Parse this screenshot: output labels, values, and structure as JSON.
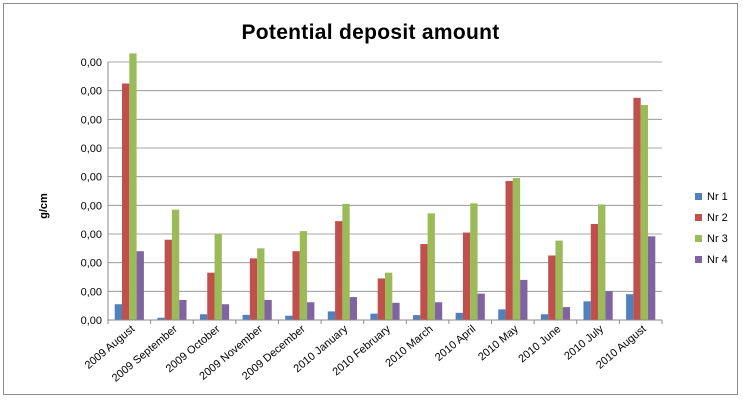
{
  "chart_data": {
    "type": "bar",
    "title": "Potential deposit amount",
    "ylabel": "g/cm",
    "xlabel": "",
    "ylim": [
      0,
      9
    ],
    "y_tick_labels": [
      "0,00",
      "0,00",
      "0,00",
      "0,00",
      "0,00",
      "0,00",
      "0,00",
      "0,00",
      "0,00",
      "0,00"
    ],
    "categories": [
      "2009 August",
      "2009 September",
      "2009 October",
      "2009 November",
      "2009 December",
      "2010 January",
      "2010 February",
      "2010 March",
      "2010 April",
      "2010 May",
      "2010 June",
      "2010 July",
      "2010 August"
    ],
    "series": [
      {
        "name": "Nr 1",
        "color": "#4f81bd",
        "values": [
          0.55,
          0.08,
          0.2,
          0.18,
          0.15,
          0.3,
          0.22,
          0.17,
          0.25,
          0.37,
          0.2,
          0.65,
          0.9
        ]
      },
      {
        "name": "Nr 2",
        "color": "#c0504d",
        "values": [
          8.25,
          2.8,
          1.65,
          2.15,
          2.4,
          3.45,
          1.45,
          2.65,
          3.05,
          4.85,
          2.25,
          3.35,
          7.75
        ]
      },
      {
        "name": "Nr 3",
        "color": "#9bbb59",
        "values": [
          9.3,
          3.85,
          3.0,
          2.5,
          3.1,
          4.05,
          1.65,
          3.72,
          4.07,
          4.95,
          2.77,
          4.03,
          7.5
        ]
      },
      {
        "name": "Nr 4",
        "color": "#8064a2",
        "values": [
          2.4,
          0.7,
          0.55,
          0.7,
          0.62,
          0.8,
          0.6,
          0.62,
          0.92,
          1.4,
          0.45,
          1.0,
          2.92
        ]
      }
    ],
    "grid": true,
    "legend_position": "right"
  }
}
